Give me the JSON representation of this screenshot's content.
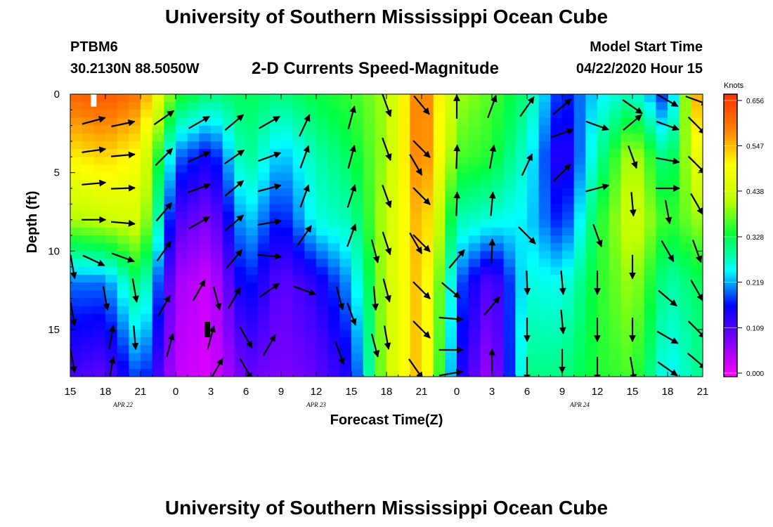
{
  "header": {
    "title": "University of Southern Mississippi Ocean Cube",
    "station_id": "PTBM6",
    "station_coords": "30.2130N 88.5050W",
    "plot_title": "2-D Currents Speed-Magnitude",
    "model_start_label": "Model Start Time",
    "model_start_value": "04/22/2020 Hour 15"
  },
  "footer": {
    "title": "University of Southern Mississippi Ocean Cube"
  },
  "chart_data": {
    "type": "heatmap",
    "title": "2-D Currents Speed-Magnitude",
    "xlabel": "Forecast Time(Z)",
    "ylabel": "Depth (ft)",
    "x_tick_labels": [
      "15",
      "18",
      "21",
      "0",
      "3",
      "6",
      "9",
      "12",
      "15",
      "18",
      "21",
      "0",
      "3",
      "6",
      "9",
      "12",
      "15",
      "18",
      "21"
    ],
    "x_hours": [
      0,
      3,
      6,
      9,
      12,
      15,
      18,
      21,
      24,
      27,
      30,
      33,
      36,
      39,
      42,
      45,
      48,
      51,
      54
    ],
    "xlim": [
      0,
      54
    ],
    "date_labels": [
      {
        "text": "APR  22",
        "hour": 4.5
      },
      {
        "text": "APR  23",
        "hour": 21
      },
      {
        "text": "APR  24",
        "hour": 43.5
      }
    ],
    "y_tick_labels": [
      "0",
      "5",
      "10",
      "15"
    ],
    "y_ticks": [
      0,
      5,
      10,
      15
    ],
    "ylim": [
      0,
      18
    ],
    "y_inverted": true,
    "colorbar": {
      "unit": "Knots",
      "min": 0.0,
      "max": 0.656,
      "tick_labels": [
        "0.656",
        "0.547",
        "0.438",
        "0.328",
        "0.219",
        "0.109",
        "0.000"
      ],
      "tick_values": [
        0.656,
        0.547,
        0.438,
        0.328,
        0.219,
        0.109,
        0.0
      ],
      "colors": [
        "#ff00ff",
        "#8000ff",
        "#0000ff",
        "#00ffff",
        "#00ff40",
        "#c0ff00",
        "#ffff00",
        "#ff8000",
        "#ff3000"
      ]
    },
    "speed_profiles": [
      {
        "hour": 0,
        "depths": [
          0,
          4,
          8,
          12,
          18
        ],
        "speeds": [
          0.6,
          0.5,
          0.4,
          0.2,
          0.12
        ]
      },
      {
        "hour": 3,
        "depths": [
          0,
          4,
          8,
          12,
          18
        ],
        "speeds": [
          0.62,
          0.52,
          0.42,
          0.2,
          0.1
        ]
      },
      {
        "hour": 6,
        "depths": [
          0,
          4,
          8,
          12,
          18
        ],
        "speeds": [
          0.58,
          0.48,
          0.44,
          0.32,
          0.2
        ]
      },
      {
        "hour": 9,
        "depths": [
          0,
          4,
          8,
          12,
          18
        ],
        "speeds": [
          0.35,
          0.2,
          0.12,
          0.06,
          0.04
        ]
      },
      {
        "hour": 12,
        "depths": [
          0,
          4,
          8,
          12,
          18
        ],
        "speeds": [
          0.3,
          0.15,
          0.08,
          0.03,
          0.02
        ]
      },
      {
        "hour": 15,
        "depths": [
          0,
          4,
          8,
          12,
          18
        ],
        "speeds": [
          0.32,
          0.3,
          0.24,
          0.18,
          0.1
        ]
      },
      {
        "hour": 18,
        "depths": [
          0,
          4,
          8,
          12,
          18
        ],
        "speeds": [
          0.3,
          0.22,
          0.16,
          0.1,
          0.08
        ]
      },
      {
        "hour": 21,
        "depths": [
          0,
          4,
          8,
          12,
          18
        ],
        "speeds": [
          0.33,
          0.28,
          0.26,
          0.14,
          0.1
        ]
      },
      {
        "hour": 24,
        "depths": [
          0,
          4,
          8,
          12,
          18
        ],
        "speeds": [
          0.35,
          0.32,
          0.28,
          0.22,
          0.15
        ]
      },
      {
        "hour": 27,
        "depths": [
          0,
          4,
          8,
          12,
          18
        ],
        "speeds": [
          0.4,
          0.4,
          0.42,
          0.42,
          0.42
        ]
      },
      {
        "hour": 30,
        "depths": [
          0,
          4,
          8,
          12,
          18
        ],
        "speeds": [
          0.6,
          0.6,
          0.56,
          0.55,
          0.55
        ]
      },
      {
        "hour": 33,
        "depths": [
          0,
          4,
          8,
          12,
          18
        ],
        "speeds": [
          0.4,
          0.36,
          0.28,
          0.2,
          0.16
        ]
      },
      {
        "hour": 36,
        "depths": [
          0,
          4,
          8,
          12,
          18
        ],
        "speeds": [
          0.36,
          0.34,
          0.26,
          0.1,
          0.05
        ]
      },
      {
        "hour": 39,
        "depths": [
          0,
          4,
          8,
          12,
          18
        ],
        "speeds": [
          0.3,
          0.26,
          0.24,
          0.26,
          0.3
        ]
      },
      {
        "hour": 42,
        "depths": [
          0,
          4,
          8,
          12,
          18
        ],
        "speeds": [
          0.16,
          0.12,
          0.16,
          0.25,
          0.3
        ]
      },
      {
        "hour": 45,
        "depths": [
          0,
          4,
          8,
          12,
          18
        ],
        "speeds": [
          0.24,
          0.28,
          0.33,
          0.34,
          0.34
        ]
      },
      {
        "hour": 48,
        "depths": [
          0,
          4,
          8,
          12,
          18
        ],
        "speeds": [
          0.28,
          0.42,
          0.44,
          0.4,
          0.36
        ]
      },
      {
        "hour": 51,
        "depths": [
          0,
          4,
          8,
          12,
          18
        ],
        "speeds": [
          0.16,
          0.28,
          0.34,
          0.28,
          0.24
        ]
      },
      {
        "hour": 54,
        "depths": [
          0,
          4,
          8,
          12,
          18
        ],
        "speeds": [
          0.62,
          0.5,
          0.4,
          0.32,
          0.3
        ]
      }
    ],
    "vectors": [
      {
        "hour": 2,
        "depth": 1.7,
        "dir_deg": 15
      },
      {
        "hour": 2,
        "depth": 3.6,
        "dir_deg": 8
      },
      {
        "hour": 2,
        "depth": 5.7,
        "dir_deg": 5
      },
      {
        "hour": 2,
        "depth": 8.0,
        "dir_deg": 0
      },
      {
        "hour": 2,
        "depth": 10.6,
        "dir_deg": -25
      },
      {
        "hour": 4.5,
        "depth": 1.9,
        "dir_deg": 12
      },
      {
        "hour": 4.5,
        "depth": 3.9,
        "dir_deg": 5
      },
      {
        "hour": 4.5,
        "depth": 6.0,
        "dir_deg": 2
      },
      {
        "hour": 4.5,
        "depth": 8.2,
        "dir_deg": -5
      },
      {
        "hour": 4.5,
        "depth": 10.4,
        "dir_deg": -20
      },
      {
        "hour": 8,
        "depth": 1.5,
        "dir_deg": 35
      },
      {
        "hour": 8,
        "depth": 4.0,
        "dir_deg": 45
      },
      {
        "hour": 8,
        "depth": 7.5,
        "dir_deg": 50
      },
      {
        "hour": 8,
        "depth": 10.0,
        "dir_deg": 55
      },
      {
        "hour": 8,
        "depth": 13.5,
        "dir_deg": 60
      },
      {
        "hour": 11,
        "depth": 1.8,
        "dir_deg": 30
      },
      {
        "hour": 11,
        "depth": 4.0,
        "dir_deg": 25
      },
      {
        "hour": 11,
        "depth": 6.0,
        "dir_deg": 20
      },
      {
        "hour": 11,
        "depth": 8.2,
        "dir_deg": 30
      },
      {
        "hour": 14,
        "depth": 1.8,
        "dir_deg": 40
      },
      {
        "hour": 14,
        "depth": 4.0,
        "dir_deg": 35
      },
      {
        "hour": 14,
        "depth": 6.0,
        "dir_deg": 40
      },
      {
        "hour": 14,
        "depth": 8.2,
        "dir_deg": 40
      },
      {
        "hour": 14,
        "depth": 10.5,
        "dir_deg": 50
      },
      {
        "hour": 14,
        "depth": 13.0,
        "dir_deg": 60
      },
      {
        "hour": 17,
        "depth": 1.8,
        "dir_deg": 30
      },
      {
        "hour": 17,
        "depth": 4.0,
        "dir_deg": 20
      },
      {
        "hour": 17,
        "depth": 6.0,
        "dir_deg": 15
      },
      {
        "hour": 17,
        "depth": 8.2,
        "dir_deg": 10
      },
      {
        "hour": 17,
        "depth": 10.3,
        "dir_deg": -5
      },
      {
        "hour": 20,
        "depth": 2.0,
        "dir_deg": 65
      },
      {
        "hour": 20,
        "depth": 4.0,
        "dir_deg": 70
      },
      {
        "hour": 20,
        "depth": 6.5,
        "dir_deg": 70
      },
      {
        "hour": 20,
        "depth": 9.0,
        "dir_deg": 55
      },
      {
        "hour": 20,
        "depth": 12.5,
        "dir_deg": -20
      },
      {
        "hour": 24,
        "depth": 1.5,
        "dir_deg": 75
      },
      {
        "hour": 24,
        "depth": 4.0,
        "dir_deg": 75
      },
      {
        "hour": 24,
        "depth": 6.5,
        "dir_deg": 72
      },
      {
        "hour": 24,
        "depth": 9.0,
        "dir_deg": 70
      },
      {
        "hour": 24,
        "depth": 14.0,
        "dir_deg": -70
      },
      {
        "hour": 27,
        "depth": 0.7,
        "dir_deg": -70
      },
      {
        "hour": 27,
        "depth": 3.5,
        "dir_deg": -70
      },
      {
        "hour": 27,
        "depth": 6.5,
        "dir_deg": -70
      },
      {
        "hour": 27,
        "depth": 9.5,
        "dir_deg": -72
      },
      {
        "hour": 27,
        "depth": 12.5,
        "dir_deg": -75
      },
      {
        "hour": 27,
        "depth": 15.5,
        "dir_deg": -80
      },
      {
        "hour": 30,
        "depth": 0.7,
        "dir_deg": -50
      },
      {
        "hour": 30,
        "depth": 3.5,
        "dir_deg": -45
      },
      {
        "hour": 30,
        "depth": 6.5,
        "dir_deg": -45
      },
      {
        "hour": 30,
        "depth": 9.5,
        "dir_deg": -45
      },
      {
        "hour": 30,
        "depth": 12.5,
        "dir_deg": -45
      },
      {
        "hour": 30,
        "depth": 15.0,
        "dir_deg": -45
      },
      {
        "hour": 32.5,
        "depth": 12.5,
        "dir_deg": -40
      },
      {
        "hour": 32.5,
        "depth": 14.3,
        "dir_deg": -5
      },
      {
        "hour": 32.5,
        "depth": 16.3,
        "dir_deg": 0
      },
      {
        "hour": 32.5,
        "depth": 17.8,
        "dir_deg": 10
      },
      {
        "hour": 33,
        "depth": 0.8,
        "dir_deg": 90
      },
      {
        "hour": 33,
        "depth": 4.0,
        "dir_deg": 88
      },
      {
        "hour": 33,
        "depth": 7.0,
        "dir_deg": 88
      },
      {
        "hour": 33,
        "depth": 10.5,
        "dir_deg": 50
      },
      {
        "hour": 36,
        "depth": 0.8,
        "dir_deg": 70
      },
      {
        "hour": 36,
        "depth": 4.0,
        "dir_deg": 80
      },
      {
        "hour": 36,
        "depth": 7.0,
        "dir_deg": 85
      },
      {
        "hour": 36,
        "depth": 10.0,
        "dir_deg": 88
      },
      {
        "hour": 36,
        "depth": 13.5,
        "dir_deg": 50
      },
      {
        "hour": 36,
        "depth": 17.0,
        "dir_deg": 90
      },
      {
        "hour": 39,
        "depth": 0.8,
        "dir_deg": 55
      },
      {
        "hour": 39,
        "depth": 4.5,
        "dir_deg": 65
      },
      {
        "hour": 39,
        "depth": 9.0,
        "dir_deg": -45
      },
      {
        "hour": 39,
        "depth": 12.0,
        "dir_deg": -88
      },
      {
        "hour": 39,
        "depth": 15.0,
        "dir_deg": -90
      },
      {
        "hour": 39,
        "depth": 17.5,
        "dir_deg": -90
      },
      {
        "hour": 42,
        "depth": 0.8,
        "dir_deg": 40
      },
      {
        "hour": 42,
        "depth": 2.5,
        "dir_deg": 20
      },
      {
        "hour": 42,
        "depth": 5.0,
        "dir_deg": 45
      },
      {
        "hour": 42,
        "depth": 12.0,
        "dir_deg": -85
      },
      {
        "hour": 42,
        "depth": 14.5,
        "dir_deg": -85
      },
      {
        "hour": 42,
        "depth": 17.0,
        "dir_deg": -90
      },
      {
        "hour": 45,
        "depth": 2.0,
        "dir_deg": -20
      },
      {
        "hour": 45,
        "depth": 6.0,
        "dir_deg": 15
      },
      {
        "hour": 45,
        "depth": 9.0,
        "dir_deg": -70
      },
      {
        "hour": 45,
        "depth": 12.0,
        "dir_deg": -90
      },
      {
        "hour": 45,
        "depth": 15.0,
        "dir_deg": -90
      },
      {
        "hour": 45,
        "depth": 17.5,
        "dir_deg": -90
      },
      {
        "hour": 48,
        "depth": 0.8,
        "dir_deg": -35
      },
      {
        "hour": 48,
        "depth": 1.8,
        "dir_deg": 40
      },
      {
        "hour": 48,
        "depth": 4.0,
        "dir_deg": -70
      },
      {
        "hour": 48,
        "depth": 7.0,
        "dir_deg": -85
      },
      {
        "hour": 48,
        "depth": 11.0,
        "dir_deg": -90
      },
      {
        "hour": 48,
        "depth": 15.0,
        "dir_deg": -90
      },
      {
        "hour": 48,
        "depth": 17.5,
        "dir_deg": -80
      },
      {
        "hour": 51,
        "depth": 0.4,
        "dir_deg": -30
      },
      {
        "hour": 51,
        "depth": 2.0,
        "dir_deg": -20
      },
      {
        "hour": 51,
        "depth": 4.2,
        "dir_deg": -10
      },
      {
        "hour": 51,
        "depth": 6.0,
        "dir_deg": 0
      },
      {
        "hour": 51,
        "depth": 7.5,
        "dir_deg": -80
      },
      {
        "hour": 51,
        "depth": 10.0,
        "dir_deg": -60
      },
      {
        "hour": 51,
        "depth": 13.0,
        "dir_deg": -40
      },
      {
        "hour": 51,
        "depth": 15.5,
        "dir_deg": -30
      },
      {
        "hour": 51,
        "depth": 17.5,
        "dir_deg": -35
      },
      {
        "hour": 53.5,
        "depth": 0.4,
        "dir_deg": -20
      },
      {
        "hour": 53.5,
        "depth": 2.0,
        "dir_deg": -45
      },
      {
        "hour": 53.5,
        "depth": 4.5,
        "dir_deg": -45
      },
      {
        "hour": 53.5,
        "depth": 7.0,
        "dir_deg": -60
      },
      {
        "hour": 53.5,
        "depth": 10.0,
        "dir_deg": -70
      },
      {
        "hour": 53.5,
        "depth": 12.5,
        "dir_deg": -60
      },
      {
        "hour": 53.5,
        "depth": 15.0,
        "dir_deg": -45
      },
      {
        "hour": 53.5,
        "depth": 17.0,
        "dir_deg": -40
      },
      {
        "hour": 0.2,
        "depth": 11.0,
        "dir_deg": -80
      },
      {
        "hour": 0.2,
        "depth": 14.0,
        "dir_deg": -80
      },
      {
        "hour": 0.2,
        "depth": 17.0,
        "dir_deg": -80
      },
      {
        "hour": 3,
        "depth": 13.0,
        "dir_deg": -80
      },
      {
        "hour": 3.5,
        "depth": 15.5,
        "dir_deg": 80
      },
      {
        "hour": 3.5,
        "depth": 17.5,
        "dir_deg": 80
      },
      {
        "hour": 5.5,
        "depth": 12.5,
        "dir_deg": -80
      },
      {
        "hour": 5.5,
        "depth": 15.5,
        "dir_deg": -85
      },
      {
        "hour": 8.5,
        "depth": 16.0,
        "dir_deg": 75
      },
      {
        "hour": 11,
        "depth": 12.5,
        "dir_deg": 60
      },
      {
        "hour": 12,
        "depth": 15.5,
        "dir_deg": 75
      },
      {
        "hour": 12.5,
        "depth": 13.0,
        "dir_deg": -75
      },
      {
        "hour": 12.5,
        "depth": 17.5,
        "dir_deg": 60
      },
      {
        "hour": 15,
        "depth": 15.5,
        "dir_deg": -60
      },
      {
        "hour": 15,
        "depth": 17.5,
        "dir_deg": -60
      },
      {
        "hour": 17,
        "depth": 12.5,
        "dir_deg": 35
      },
      {
        "hour": 17,
        "depth": 16.0,
        "dir_deg": 60
      },
      {
        "hour": 23,
        "depth": 13.0,
        "dir_deg": -75
      },
      {
        "hour": 23,
        "depth": 16.5,
        "dir_deg": -70
      },
      {
        "hour": 26,
        "depth": 10.0,
        "dir_deg": -75
      },
      {
        "hour": 26,
        "depth": 13.0,
        "dir_deg": -85
      },
      {
        "hour": 26,
        "depth": 16.0,
        "dir_deg": -75
      },
      {
        "hour": 29.5,
        "depth": 4.5,
        "dir_deg": -60
      },
      {
        "hour": 29.5,
        "depth": 9.5,
        "dir_deg": -60
      },
      {
        "hour": 29.5,
        "depth": 17.5,
        "dir_deg": -55
      }
    ],
    "markers": [
      {
        "hour": 2,
        "depth": 0.3,
        "color": "#ffffff"
      },
      {
        "hour": 11.7,
        "depth": 15.0,
        "color": "#000000"
      }
    ]
  }
}
